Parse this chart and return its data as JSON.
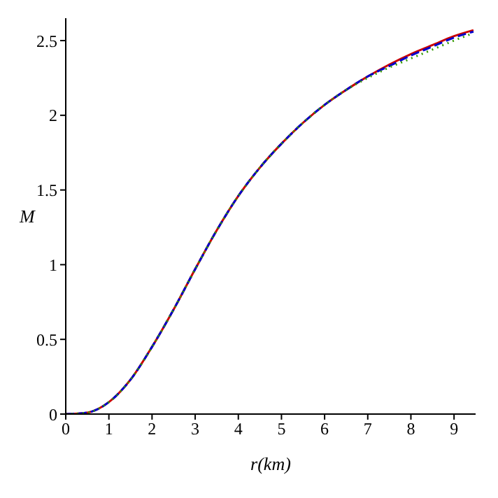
{
  "chart_data": {
    "type": "line",
    "xlabel": "r(km)",
    "ylabel": "M",
    "xlim": [
      0,
      9.5
    ],
    "ylim": [
      0,
      2.65
    ],
    "xticks": [
      0,
      1,
      2,
      3,
      4,
      5,
      6,
      7,
      8,
      9
    ],
    "yticks": [
      0,
      0.5,
      1,
      1.5,
      2,
      2.5
    ],
    "grid": false,
    "legend": false,
    "marker": "none",
    "x": [
      0,
      0.5,
      1,
      1.5,
      2,
      2.5,
      3,
      3.5,
      4,
      4.5,
      5,
      5.5,
      6,
      6.5,
      7,
      7.5,
      8,
      8.5,
      9,
      9.45
    ],
    "series": [
      {
        "color": "#cc0000",
        "line_style": "solid",
        "values": [
          0,
          0.01,
          0.08,
          0.23,
          0.45,
          0.7,
          0.97,
          1.23,
          1.46,
          1.65,
          1.81,
          1.95,
          2.07,
          2.17,
          2.26,
          2.34,
          2.41,
          2.47,
          2.53,
          2.57
        ]
      },
      {
        "color": "#0000cc",
        "line_style": "dashed",
        "values": [
          0,
          0.01,
          0.08,
          0.23,
          0.45,
          0.7,
          0.97,
          1.23,
          1.46,
          1.65,
          1.81,
          1.95,
          2.07,
          2.17,
          2.26,
          2.33,
          2.4,
          2.46,
          2.52,
          2.56
        ]
      },
      {
        "color": "#339900",
        "line_style": "dotted",
        "values": [
          0,
          0.01,
          0.08,
          0.23,
          0.45,
          0.7,
          0.97,
          1.23,
          1.46,
          1.65,
          1.81,
          1.95,
          2.07,
          2.17,
          2.25,
          2.32,
          2.38,
          2.44,
          2.5,
          2.55
        ]
      }
    ]
  }
}
